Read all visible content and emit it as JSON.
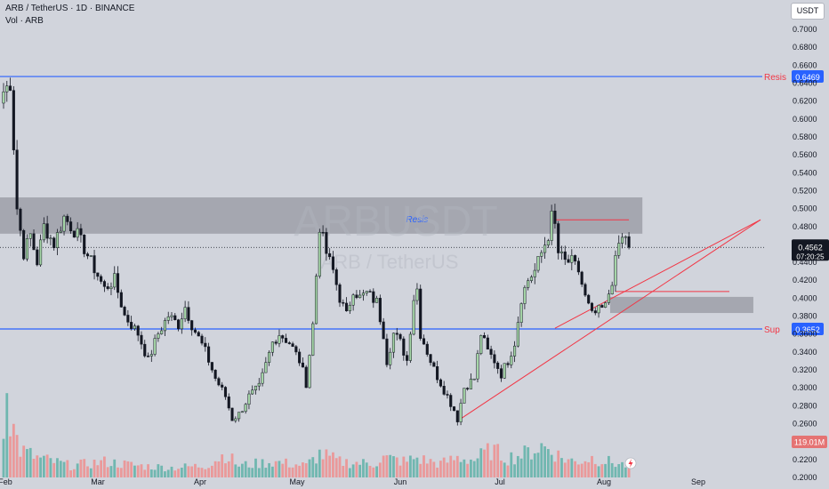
{
  "header": {
    "symbol_line": "ARB / TetherUS · 1D · BINANCE",
    "volume_line": "Vol · ARB"
  },
  "currency_button": "USDT",
  "watermark": {
    "ticker": "ARBUSDT",
    "pair": "ARB / TetherUS"
  },
  "colors": {
    "background": "#d1d4dc",
    "bull_candle": "#a5d6a7",
    "bear_candle": "#131722",
    "volume_up": "#5fb2a8",
    "volume_down": "#ef8e8e",
    "level_line": "#2962ff",
    "trend_line": "#f23645",
    "zone_fill": "#9598a1",
    "price_tag": "#131722",
    "volume_tag": "#e57373"
  },
  "chart_data": {
    "type": "candlestick",
    "y_axis": {
      "ticks": [
        "0.7000",
        "0.6800",
        "0.6600",
        "0.6400",
        "0.6200",
        "0.6000",
        "0.5800",
        "0.5600",
        "0.5400",
        "0.5200",
        "0.5000",
        "0.4800",
        "0.4600",
        "0.4400",
        "0.4200",
        "0.4000",
        "0.3800",
        "0.3600",
        "0.3400",
        "0.3200",
        "0.3000",
        "0.2800",
        "0.2600",
        "0.2400",
        "0.2200",
        "0.2000"
      ],
      "range": [
        0.199,
        0.7025
      ]
    },
    "x_axis": {
      "labels": [
        "Feb",
        "Mar",
        "Apr",
        "May",
        "Jun",
        "Jul",
        "Aug",
        "Sep"
      ]
    },
    "levels": [
      {
        "name": "Resis",
        "value": 0.6469,
        "tag": "0.6469"
      },
      {
        "name": "Sup",
        "value": 0.3652,
        "tag": "0.3652"
      }
    ],
    "current_price": {
      "value": 0.4562,
      "tag": "0.4562",
      "countdown": "07:20:25"
    },
    "volume_tag": "119.01M",
    "zones": [
      {
        "label": "Resis",
        "from": 0.4715,
        "to": 0.512,
        "start": "Feb",
        "end": "Aug"
      },
      {
        "label": "",
        "from": 0.383,
        "to": 0.401,
        "start": "Aug",
        "end": "Aug"
      }
    ],
    "trend_lines": [
      {
        "from_price": 0.265,
        "to_price": 0.487,
        "from": "Jun",
        "to": "Sep"
      },
      {
        "from_price": 0.487,
        "to_price": 0.487,
        "from": "Jul",
        "to": "Sep"
      },
      {
        "from_price": 0.407,
        "to_price": 0.407,
        "from": "Aug",
        "to": "Aug"
      }
    ],
    "close_anchors": [
      [
        0,
        0.63
      ],
      [
        2,
        0.64
      ],
      [
        4,
        0.5
      ],
      [
        6,
        0.45
      ],
      [
        8,
        0.47
      ],
      [
        10,
        0.44
      ],
      [
        12,
        0.48
      ],
      [
        15,
        0.46
      ],
      [
        18,
        0.49
      ],
      [
        22,
        0.47
      ],
      [
        26,
        0.44
      ],
      [
        30,
        0.41
      ],
      [
        33,
        0.42
      ],
      [
        36,
        0.38
      ],
      [
        40,
        0.36
      ],
      [
        43,
        0.33
      ],
      [
        46,
        0.36
      ],
      [
        49,
        0.38
      ],
      [
        52,
        0.37
      ],
      [
        54,
        0.39
      ],
      [
        56,
        0.37
      ],
      [
        60,
        0.34
      ],
      [
        63,
        0.31
      ],
      [
        66,
        0.29
      ],
      [
        68,
        0.265
      ],
      [
        70,
        0.27
      ],
      [
        73,
        0.29
      ],
      [
        76,
        0.3
      ],
      [
        80,
        0.35
      ],
      [
        82,
        0.36
      ],
      [
        85,
        0.35
      ],
      [
        88,
        0.33
      ],
      [
        90,
        0.305
      ],
      [
        92,
        0.37
      ],
      [
        94,
        0.48
      ],
      [
        96,
        0.45
      ],
      [
        98,
        0.43
      ],
      [
        100,
        0.4
      ],
      [
        102,
        0.38
      ],
      [
        104,
        0.41
      ],
      [
        106,
        0.4
      ],
      [
        108,
        0.405
      ],
      [
        111,
        0.395
      ],
      [
        113,
        0.36
      ],
      [
        114,
        0.33
      ],
      [
        116,
        0.36
      ],
      [
        118,
        0.35
      ],
      [
        120,
        0.33
      ],
      [
        122,
        0.4
      ],
      [
        123,
        0.41
      ],
      [
        124,
        0.36
      ],
      [
        126,
        0.34
      ],
      [
        128,
        0.32
      ],
      [
        130,
        0.305
      ],
      [
        132,
        0.29
      ],
      [
        134,
        0.275
      ],
      [
        135,
        0.265
      ],
      [
        137,
        0.3
      ],
      [
        140,
        0.31
      ],
      [
        142,
        0.36
      ],
      [
        144,
        0.34
      ],
      [
        146,
        0.33
      ],
      [
        148,
        0.315
      ],
      [
        150,
        0.33
      ],
      [
        152,
        0.35
      ],
      [
        154,
        0.4
      ],
      [
        156,
        0.42
      ],
      [
        158,
        0.43
      ],
      [
        160,
        0.45
      ],
      [
        162,
        0.47
      ],
      [
        163,
        0.49
      ],
      [
        164,
        0.48
      ],
      [
        165,
        0.45
      ],
      [
        167,
        0.44
      ],
      [
        169,
        0.44
      ],
      [
        171,
        0.43
      ],
      [
        173,
        0.4
      ],
      [
        175,
        0.38
      ],
      [
        177,
        0.385
      ],
      [
        179,
        0.39
      ],
      [
        181,
        0.42
      ],
      [
        183,
        0.46
      ],
      [
        185,
        0.47
      ],
      [
        186,
        0.4562
      ]
    ],
    "volume_anchors": [
      [
        0,
        0.1
      ],
      [
        1,
        0.33
      ],
      [
        2,
        0.15
      ],
      [
        5,
        0.07
      ],
      [
        10,
        0.05
      ],
      [
        20,
        0.03
      ],
      [
        30,
        0.04
      ],
      [
        40,
        0.03
      ],
      [
        50,
        0.025
      ],
      [
        60,
        0.03
      ],
      [
        66,
        0.06
      ],
      [
        70,
        0.03
      ],
      [
        80,
        0.04
      ],
      [
        90,
        0.03
      ],
      [
        94,
        0.06
      ],
      [
        100,
        0.04
      ],
      [
        110,
        0.035
      ],
      [
        113,
        0.05
      ],
      [
        120,
        0.04
      ],
      [
        122,
        0.05
      ],
      [
        130,
        0.035
      ],
      [
        135,
        0.05
      ],
      [
        140,
        0.045
      ],
      [
        145,
        0.07
      ],
      [
        150,
        0.05
      ],
      [
        155,
        0.06
      ],
      [
        160,
        0.08
      ],
      [
        163,
        0.07
      ],
      [
        166,
        0.05
      ],
      [
        170,
        0.04
      ],
      [
        175,
        0.05
      ],
      [
        180,
        0.04
      ],
      [
        186,
        0.0295
      ]
    ]
  }
}
